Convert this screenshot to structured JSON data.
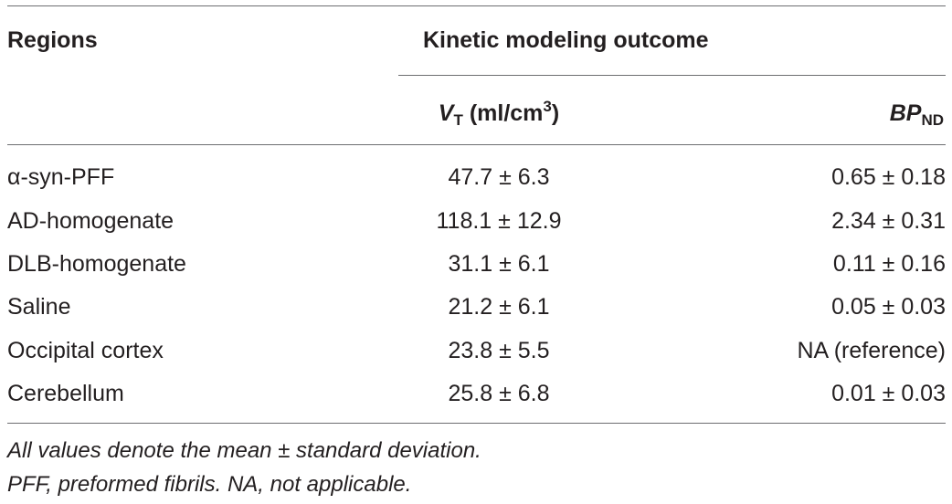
{
  "table": {
    "header": {
      "regions": "Regions",
      "group": "Kinetic modeling outcome",
      "vt_symbol": "V",
      "vt_subscript": "T",
      "vt_unit_prefix": " (ml/cm",
      "vt_unit_exponent": "3",
      "vt_unit_suffix": ")",
      "bp_symbol": "BP",
      "bp_subscript": "ND"
    },
    "rows": [
      {
        "region": "α-syn-PFF",
        "vt": "47.7 ± 6.3",
        "bp": "0.65 ± 0.18"
      },
      {
        "region": "AD-homogenate",
        "vt": "118.1 ± 12.9",
        "bp": "2.34 ± 0.31"
      },
      {
        "region": "DLB-homogenate",
        "vt": "31.1 ± 6.1",
        "bp": "0.11 ± 0.16"
      },
      {
        "region": "Saline",
        "vt": "21.2 ± 6.1",
        "bp": "0.05 ± 0.03"
      },
      {
        "region": "Occipital cortex",
        "vt": "23.8 ± 5.5",
        "bp": "NA (reference)"
      },
      {
        "region": "Cerebellum",
        "vt": "25.8 ± 6.8",
        "bp": "0.01 ± 0.03"
      }
    ],
    "footnotes": [
      "All values denote the mean ± standard deviation.",
      "PFF, preformed fibrils. NA, not applicable."
    ]
  }
}
